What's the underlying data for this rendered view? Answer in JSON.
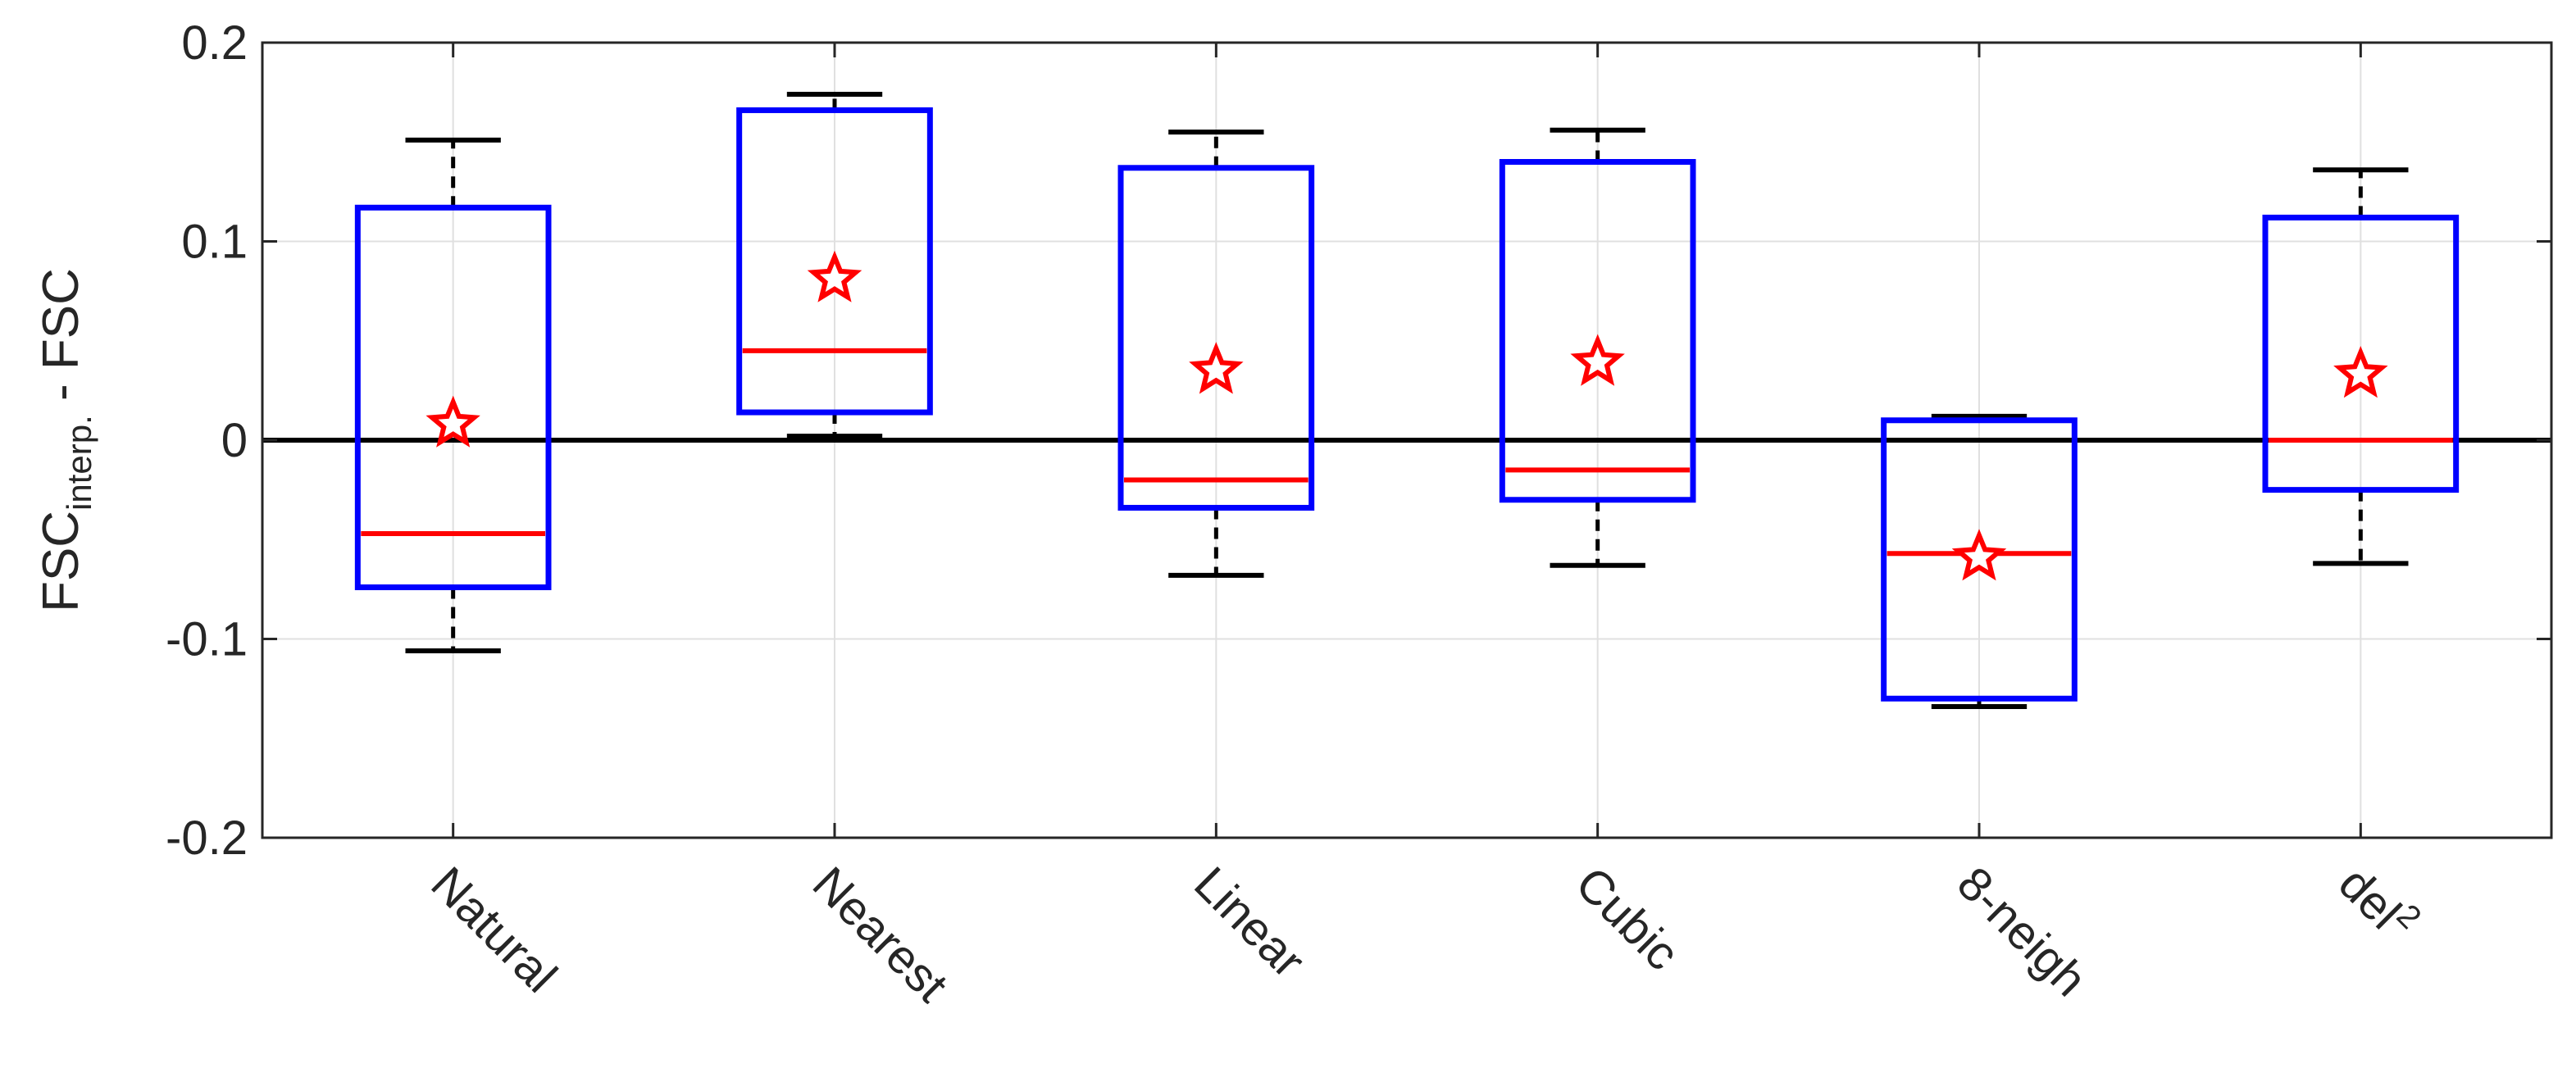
{
  "chart_data": {
    "type": "box",
    "categories": [
      "Natural",
      "Nearest",
      "Linear",
      "Cubic",
      "8-neigh",
      "del"
    ],
    "category_superscripts": [
      "",
      "",
      "",
      "",
      "",
      "2"
    ],
    "boxes": [
      {
        "whisker_low": -0.106,
        "q1": -0.074,
        "median": -0.047,
        "q3": 0.117,
        "whisker_high": 0.151,
        "mean": 0.008
      },
      {
        "whisker_low": 0.002,
        "q1": 0.014,
        "median": 0.045,
        "q3": 0.166,
        "whisker_high": 0.174,
        "mean": 0.081
      },
      {
        "whisker_low": -0.068,
        "q1": -0.034,
        "median": -0.02,
        "q3": 0.137,
        "whisker_high": 0.155,
        "mean": 0.035
      },
      {
        "whisker_low": -0.063,
        "q1": -0.03,
        "median": -0.015,
        "q3": 0.14,
        "whisker_high": 0.156,
        "mean": 0.039
      },
      {
        "whisker_low": -0.134,
        "q1": -0.13,
        "median": -0.057,
        "q3": 0.01,
        "whisker_high": 0.012,
        "mean": -0.059
      },
      {
        "whisker_low": -0.062,
        "q1": -0.025,
        "median": 0.0,
        "q3": 0.112,
        "whisker_high": 0.136,
        "mean": 0.033
      }
    ],
    "ylim": [
      -0.2,
      0.2
    ],
    "yticks": [
      -0.2,
      -0.1,
      0,
      0.1,
      0.2
    ],
    "ytick_labels": [
      "-0.2",
      "-0.1",
      "0",
      "0.1",
      "0.2"
    ],
    "ylabel": {
      "main": "FSC",
      "subscript": "interp.",
      "suffix": " - FSC"
    },
    "xlabel": "",
    "title": "",
    "grid": true,
    "reference_line_y": 0,
    "colors": {
      "box": "#0000ff",
      "median": "#ff0000",
      "mean_marker": "#ff0000",
      "whisker": "#000000",
      "reference_line": "#000000",
      "grid": "#e0e0e0",
      "axes": "#262626"
    },
    "mean_marker": "star"
  }
}
